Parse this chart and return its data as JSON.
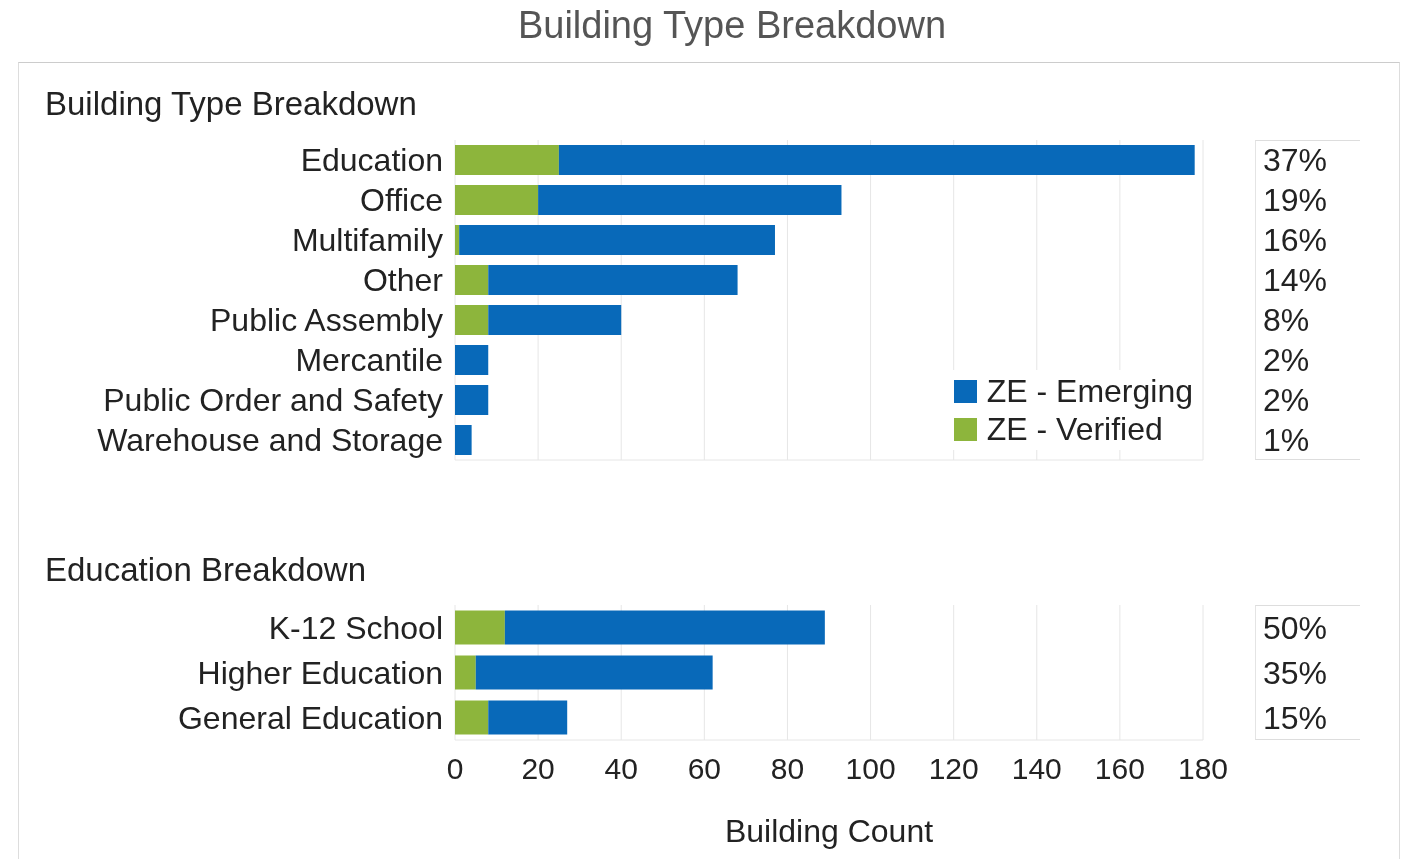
{
  "chart_data": [
    {
      "type": "bar",
      "title": "Building Type Breakdown",
      "subtitle": "Building Type Breakdown",
      "orientation": "horizontal",
      "stacked": true,
      "categories": [
        "Education",
        "Office",
        "Multifamily",
        "Other",
        "Public Assembly",
        "Mercantile",
        "Public Order and Safety",
        "Warehouse and Storage"
      ],
      "series": [
        {
          "name": "ZE - Verified",
          "color": "#8db53c",
          "values": [
            25,
            20,
            1,
            8,
            8,
            0,
            0,
            0
          ]
        },
        {
          "name": "ZE - Emerging",
          "color": "#0869b9",
          "values": [
            153,
            73,
            76,
            60,
            32,
            8,
            8,
            4
          ]
        }
      ],
      "xlim": [
        0,
        180
      ],
      "xticks": [
        0,
        20,
        40,
        60,
        80,
        100,
        120,
        140,
        160,
        180
      ],
      "tick_labels": "y",
      "grid": "x",
      "legend": "bottom right",
      "annotations": [
        "37%",
        "19%",
        "16%",
        "14%",
        "8%",
        "2%",
        "2%",
        "1%"
      ]
    },
    {
      "type": "bar",
      "title": "Education Breakdown",
      "xlabel": "Building Count",
      "orientation": "horizontal",
      "stacked": true,
      "categories": [
        "K-12 School",
        "Higher Education",
        "General Education"
      ],
      "series": [
        {
          "color": "#8db53c",
          "values": [
            12,
            5,
            8
          ]
        },
        {
          "color": "#0869b9",
          "values": [
            77,
            57,
            19
          ]
        }
      ],
      "xlim": [
        0,
        180
      ],
      "xticks": [
        0,
        20,
        40,
        60,
        80,
        100,
        120,
        140,
        160,
        180
      ],
      "grid": "x",
      "annotations": [
        "50%",
        "35%",
        "15%"
      ]
    }
  ]
}
